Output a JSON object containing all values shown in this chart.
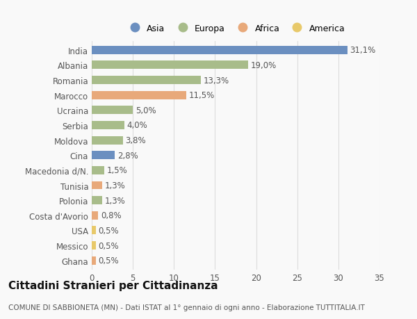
{
  "categories": [
    "India",
    "Albania",
    "Romania",
    "Marocco",
    "Ucraina",
    "Serbia",
    "Moldova",
    "Cina",
    "Macedonia d/N.",
    "Tunisia",
    "Polonia",
    "Costa d'Avorio",
    "USA",
    "Messico",
    "Ghana"
  ],
  "values": [
    31.1,
    19.0,
    13.3,
    11.5,
    5.0,
    4.0,
    3.8,
    2.8,
    1.5,
    1.3,
    1.3,
    0.8,
    0.5,
    0.5,
    0.5
  ],
  "labels": [
    "31,1%",
    "19,0%",
    "13,3%",
    "11,5%",
    "5,0%",
    "4,0%",
    "3,8%",
    "2,8%",
    "1,5%",
    "1,3%",
    "1,3%",
    "0,8%",
    "0,5%",
    "0,5%",
    "0,5%"
  ],
  "continents": [
    "Asia",
    "Europa",
    "Europa",
    "Africa",
    "Europa",
    "Europa",
    "Europa",
    "Asia",
    "Europa",
    "Africa",
    "Europa",
    "Africa",
    "America",
    "America",
    "Africa"
  ],
  "continent_colors": {
    "Asia": "#6b8fc0",
    "Europa": "#a8bc8a",
    "Africa": "#e8a97a",
    "America": "#e8c96a"
  },
  "legend_items": [
    "Asia",
    "Europa",
    "Africa",
    "America"
  ],
  "legend_colors": [
    "#6b8fc0",
    "#a8bc8a",
    "#e8a97a",
    "#e8c96a"
  ],
  "xlim": [
    0,
    35
  ],
  "xticks": [
    0,
    5,
    10,
    15,
    20,
    25,
    30,
    35
  ],
  "title": "Cittadini Stranieri per Cittadinanza",
  "subtitle": "COMUNE DI SABBIONETA (MN) - Dati ISTAT al 1° gennaio di ogni anno - Elaborazione TUTTITALIA.IT",
  "bg_color": "#f9f9f9",
  "grid_color": "#dddddd",
  "bar_height": 0.55,
  "label_fontsize": 8.5,
  "tick_fontsize": 8.5,
  "title_fontsize": 11,
  "subtitle_fontsize": 7.5
}
